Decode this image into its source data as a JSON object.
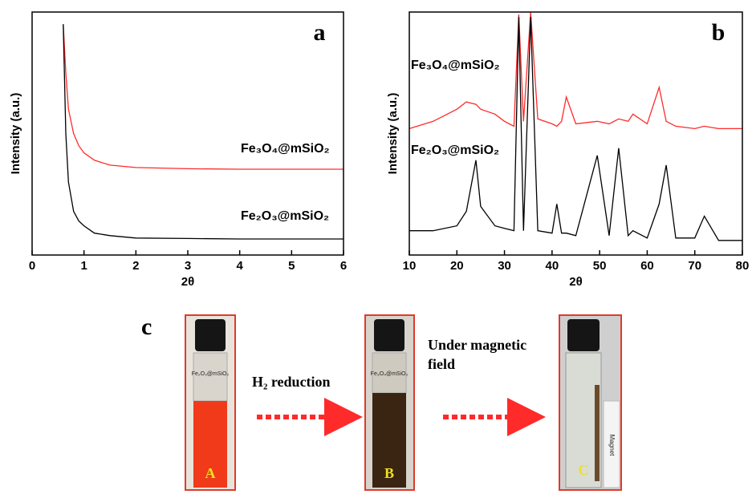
{
  "chart_data": [
    {
      "type": "line",
      "label": "a",
      "x_label": "2θ",
      "y_label": "Intensity (a.u.)",
      "x": [
        0.6,
        0.65,
        0.7,
        0.8,
        0.9,
        1,
        1.2,
        1.5,
        2,
        3,
        4,
        5,
        6
      ],
      "series": [
        {
          "name": "Fe₃O₄@mSiO₂",
          "color": "#ff2a2a",
          "values": [
            95,
            75,
            60,
            50,
            45,
            42,
            39,
            37,
            36,
            35.5,
            35.3,
            35.3,
            35.3
          ]
        },
        {
          "name": "Fe₂O₃@mSiO₂",
          "color": "#000000",
          "values": [
            95,
            50,
            30,
            18,
            14,
            12,
            9,
            8,
            7,
            6.8,
            6.6,
            6.6,
            6.6
          ]
        }
      ],
      "xlim": [
        0,
        6
      ],
      "xticks": [
        0,
        1,
        2,
        3,
        4,
        5,
        6
      ],
      "ylim": [
        0,
        100
      ]
    },
    {
      "type": "line",
      "label": "b",
      "x_label": "2θ",
      "y_label": "Intensity (a.u.)",
      "x": [
        10,
        15,
        20,
        22,
        24,
        25,
        28,
        30,
        32,
        33,
        34,
        35.5,
        37,
        40,
        41,
        42,
        43,
        45,
        49.5,
        52,
        54,
        56,
        57,
        60,
        62.5,
        64,
        66,
        70,
        72,
        75,
        80
      ],
      "series": [
        {
          "name": "Fe₃O₄@mSiO₂",
          "color": "#ff2a2a",
          "values": [
            52,
            55,
            60,
            63,
            62,
            60,
            58,
            55,
            53,
            99,
            55,
            100,
            56,
            54,
            53,
            55,
            65,
            54,
            55,
            54,
            56,
            55,
            58,
            54,
            69,
            55,
            53,
            52,
            53,
            52,
            52
          ]
        },
        {
          "name": "Fe₂O₃@mSiO₂",
          "color": "#000000",
          "values": [
            10,
            10,
            12,
            18,
            39,
            20,
            12,
            11,
            10,
            98,
            10,
            98,
            10,
            9,
            21,
            9,
            9,
            8,
            41,
            8,
            44,
            8,
            10,
            7,
            21,
            37,
            7,
            7,
            16,
            6,
            6
          ]
        }
      ],
      "xlim": [
        10,
        80
      ],
      "xticks": [
        10,
        20,
        30,
        40,
        50,
        60,
        70,
        80
      ],
      "ylim": [
        0,
        100
      ]
    }
  ],
  "panel_c": {
    "label": "c",
    "step_1": "H₂ reduction",
    "step_2": [
      "Under   magnetic",
      "field"
    ],
    "vials": [
      {
        "tag": "Fe₂O₃@mSiO₂",
        "letter": "A"
      },
      {
        "tag": "Fe₃O₄@mSiO₂",
        "letter": "B"
      },
      {
        "tag": "Magnet",
        "letter": "C"
      }
    ]
  }
}
